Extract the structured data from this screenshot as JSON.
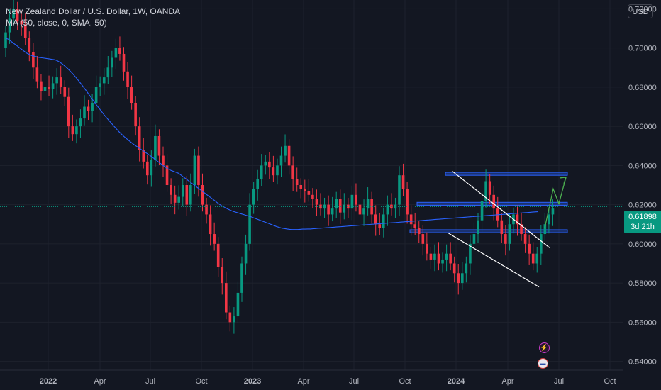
{
  "header": {
    "symbol_title": "New Zealand Dollar / U.S. Dollar, 1W, OANDA",
    "indicator": "MA (50, close, 0, SMA, 50)",
    "currency_button": "USD"
  },
  "price_label": {
    "price": "0.61898",
    "countdown": "3d 21h"
  },
  "icons": {
    "event_badge": "lightning-icon",
    "country_badge": "us-flag-icon"
  },
  "colors": {
    "background": "#131722",
    "grid": "#1e222d",
    "up": "#089981",
    "down": "#f23645",
    "ma": "#2962ff",
    "zone": "#2962ff",
    "channel": "#ffffff",
    "forecast_arrow": "#4caf50",
    "axis_text": "#b2b5be"
  },
  "chart_data": {
    "type": "candlestick",
    "title": "New Zealand Dollar / U.S. Dollar, 1W, OANDA",
    "y_ticks": [
      "0.72000",
      "0.70000",
      "0.68000",
      "0.66000",
      "0.64000",
      "0.62000",
      "0.60000",
      "0.58000",
      "0.56000",
      "0.54000"
    ],
    "x_ticks": [
      "2022",
      "Apr",
      "Jul",
      "Oct",
      "2023",
      "Apr",
      "Jul",
      "Oct",
      "2024",
      "Apr",
      "Jul",
      "Oct"
    ],
    "ylim": [
      0.5355,
      0.7245
    ],
    "last_price": 0.61898,
    "moving_average": {
      "name": "MA (50, close, 0, SMA, 50)",
      "values": [
        0.705,
        0.7045,
        0.7035,
        0.7025,
        0.7015,
        0.7005,
        0.6995,
        0.6985,
        0.6975,
        0.6968,
        0.6962,
        0.6958,
        0.6955,
        0.6952,
        0.695,
        0.6948,
        0.6946,
        0.6944,
        0.6942,
        0.694,
        0.6935,
        0.6927,
        0.6918,
        0.6907,
        0.6895,
        0.6882,
        0.6868,
        0.6853,
        0.6837,
        0.682,
        0.6803,
        0.6785,
        0.6767,
        0.6749,
        0.673,
        0.6712,
        0.6695,
        0.6678,
        0.6661,
        0.6645,
        0.663,
        0.6615,
        0.66,
        0.6585,
        0.6571,
        0.6558,
        0.6546,
        0.6535,
        0.6524,
        0.6514,
        0.6504,
        0.6495,
        0.6486,
        0.6477,
        0.6468,
        0.6459,
        0.645,
        0.644,
        0.643,
        0.642,
        0.641,
        0.64,
        0.639,
        0.6382,
        0.6375,
        0.637,
        0.6365,
        0.636,
        0.635,
        0.634,
        0.633,
        0.632,
        0.631,
        0.63,
        0.629,
        0.628,
        0.627,
        0.626,
        0.625,
        0.624,
        0.623,
        0.622,
        0.621,
        0.62,
        0.6192,
        0.6185,
        0.6178,
        0.6172,
        0.6166,
        0.6162,
        0.6158,
        0.6154,
        0.615,
        0.6146,
        0.6142,
        0.6138,
        0.6133,
        0.6128,
        0.6123,
        0.6118,
        0.6113,
        0.6108,
        0.6103,
        0.6098,
        0.6093,
        0.6088,
        0.6084,
        0.608,
        0.6078,
        0.6076,
        0.6074,
        0.6073,
        0.6073,
        0.6073,
        0.6074,
        0.6075,
        0.6075,
        0.6076,
        0.6076,
        0.6077,
        0.6078,
        0.6079,
        0.608,
        0.6081,
        0.6082,
        0.6083,
        0.6084,
        0.6085,
        0.6086,
        0.6087,
        0.6088,
        0.6089,
        0.609,
        0.6091,
        0.6092,
        0.6093,
        0.6094,
        0.6095,
        0.6096,
        0.6097,
        0.6098,
        0.6099,
        0.61,
        0.6101,
        0.6102,
        0.6103,
        0.6104,
        0.6105,
        0.6106,
        0.6107,
        0.6108,
        0.6109,
        0.611,
        0.6111,
        0.6112,
        0.6113,
        0.6114,
        0.6115,
        0.6116,
        0.6117,
        0.6118,
        0.6119,
        0.612,
        0.6121,
        0.6122,
        0.6123,
        0.6124,
        0.6125,
        0.6126,
        0.6127,
        0.6128,
        0.6129,
        0.613,
        0.6131,
        0.6132,
        0.6133,
        0.6134,
        0.6135,
        0.6136,
        0.6137,
        0.6138,
        0.6139,
        0.614,
        0.6141,
        0.6142,
        0.6143,
        0.6144,
        0.6145,
        0.6146,
        0.6147,
        0.6148,
        0.6149,
        0.615,
        0.6151,
        0.6152,
        0.6153,
        0.6154,
        0.6155,
        0.6156,
        0.6157,
        0.6158,
        0.6159,
        0.616,
        0.6161,
        0.6162,
        0.6163,
        0.6164
      ]
    },
    "closes": [
      0.708,
      0.715,
      0.72,
      0.714,
      0.712,
      0.705,
      0.698,
      0.69,
      0.683,
      0.678,
      0.68,
      0.679,
      0.682,
      0.685,
      0.68,
      0.675,
      0.66,
      0.656,
      0.66,
      0.664,
      0.67,
      0.668,
      0.672,
      0.68,
      0.682,
      0.685,
      0.69,
      0.695,
      0.7,
      0.697,
      0.688,
      0.68,
      0.672,
      0.66,
      0.648,
      0.642,
      0.635,
      0.643,
      0.655,
      0.645,
      0.64,
      0.63,
      0.625,
      0.621,
      0.624,
      0.63,
      0.62,
      0.63,
      0.645,
      0.63,
      0.62,
      0.615,
      0.605,
      0.6,
      0.588,
      0.58,
      0.565,
      0.56,
      0.563,
      0.575,
      0.59,
      0.6,
      0.62,
      0.628,
      0.633,
      0.64,
      0.642,
      0.639,
      0.635,
      0.64,
      0.645,
      0.65,
      0.64,
      0.633,
      0.63,
      0.628,
      0.627,
      0.625,
      0.623,
      0.62,
      0.618,
      0.62,
      0.615,
      0.618,
      0.623,
      0.616,
      0.62,
      0.618,
      0.625,
      0.62,
      0.615,
      0.618,
      0.623,
      0.615,
      0.61,
      0.608,
      0.615,
      0.62,
      0.618,
      0.62,
      0.635,
      0.628,
      0.615,
      0.61,
      0.608,
      0.605,
      0.6,
      0.595,
      0.592,
      0.595,
      0.59,
      0.592,
      0.595,
      0.59,
      0.585,
      0.58,
      0.585,
      0.59,
      0.6,
      0.605,
      0.612,
      0.622,
      0.632,
      0.625,
      0.618,
      0.612,
      0.605,
      0.6,
      0.61,
      0.615,
      0.61,
      0.605,
      0.6,
      0.595,
      0.59,
      0.595,
      0.605,
      0.61,
      0.615,
      0.618
    ]
  }
}
